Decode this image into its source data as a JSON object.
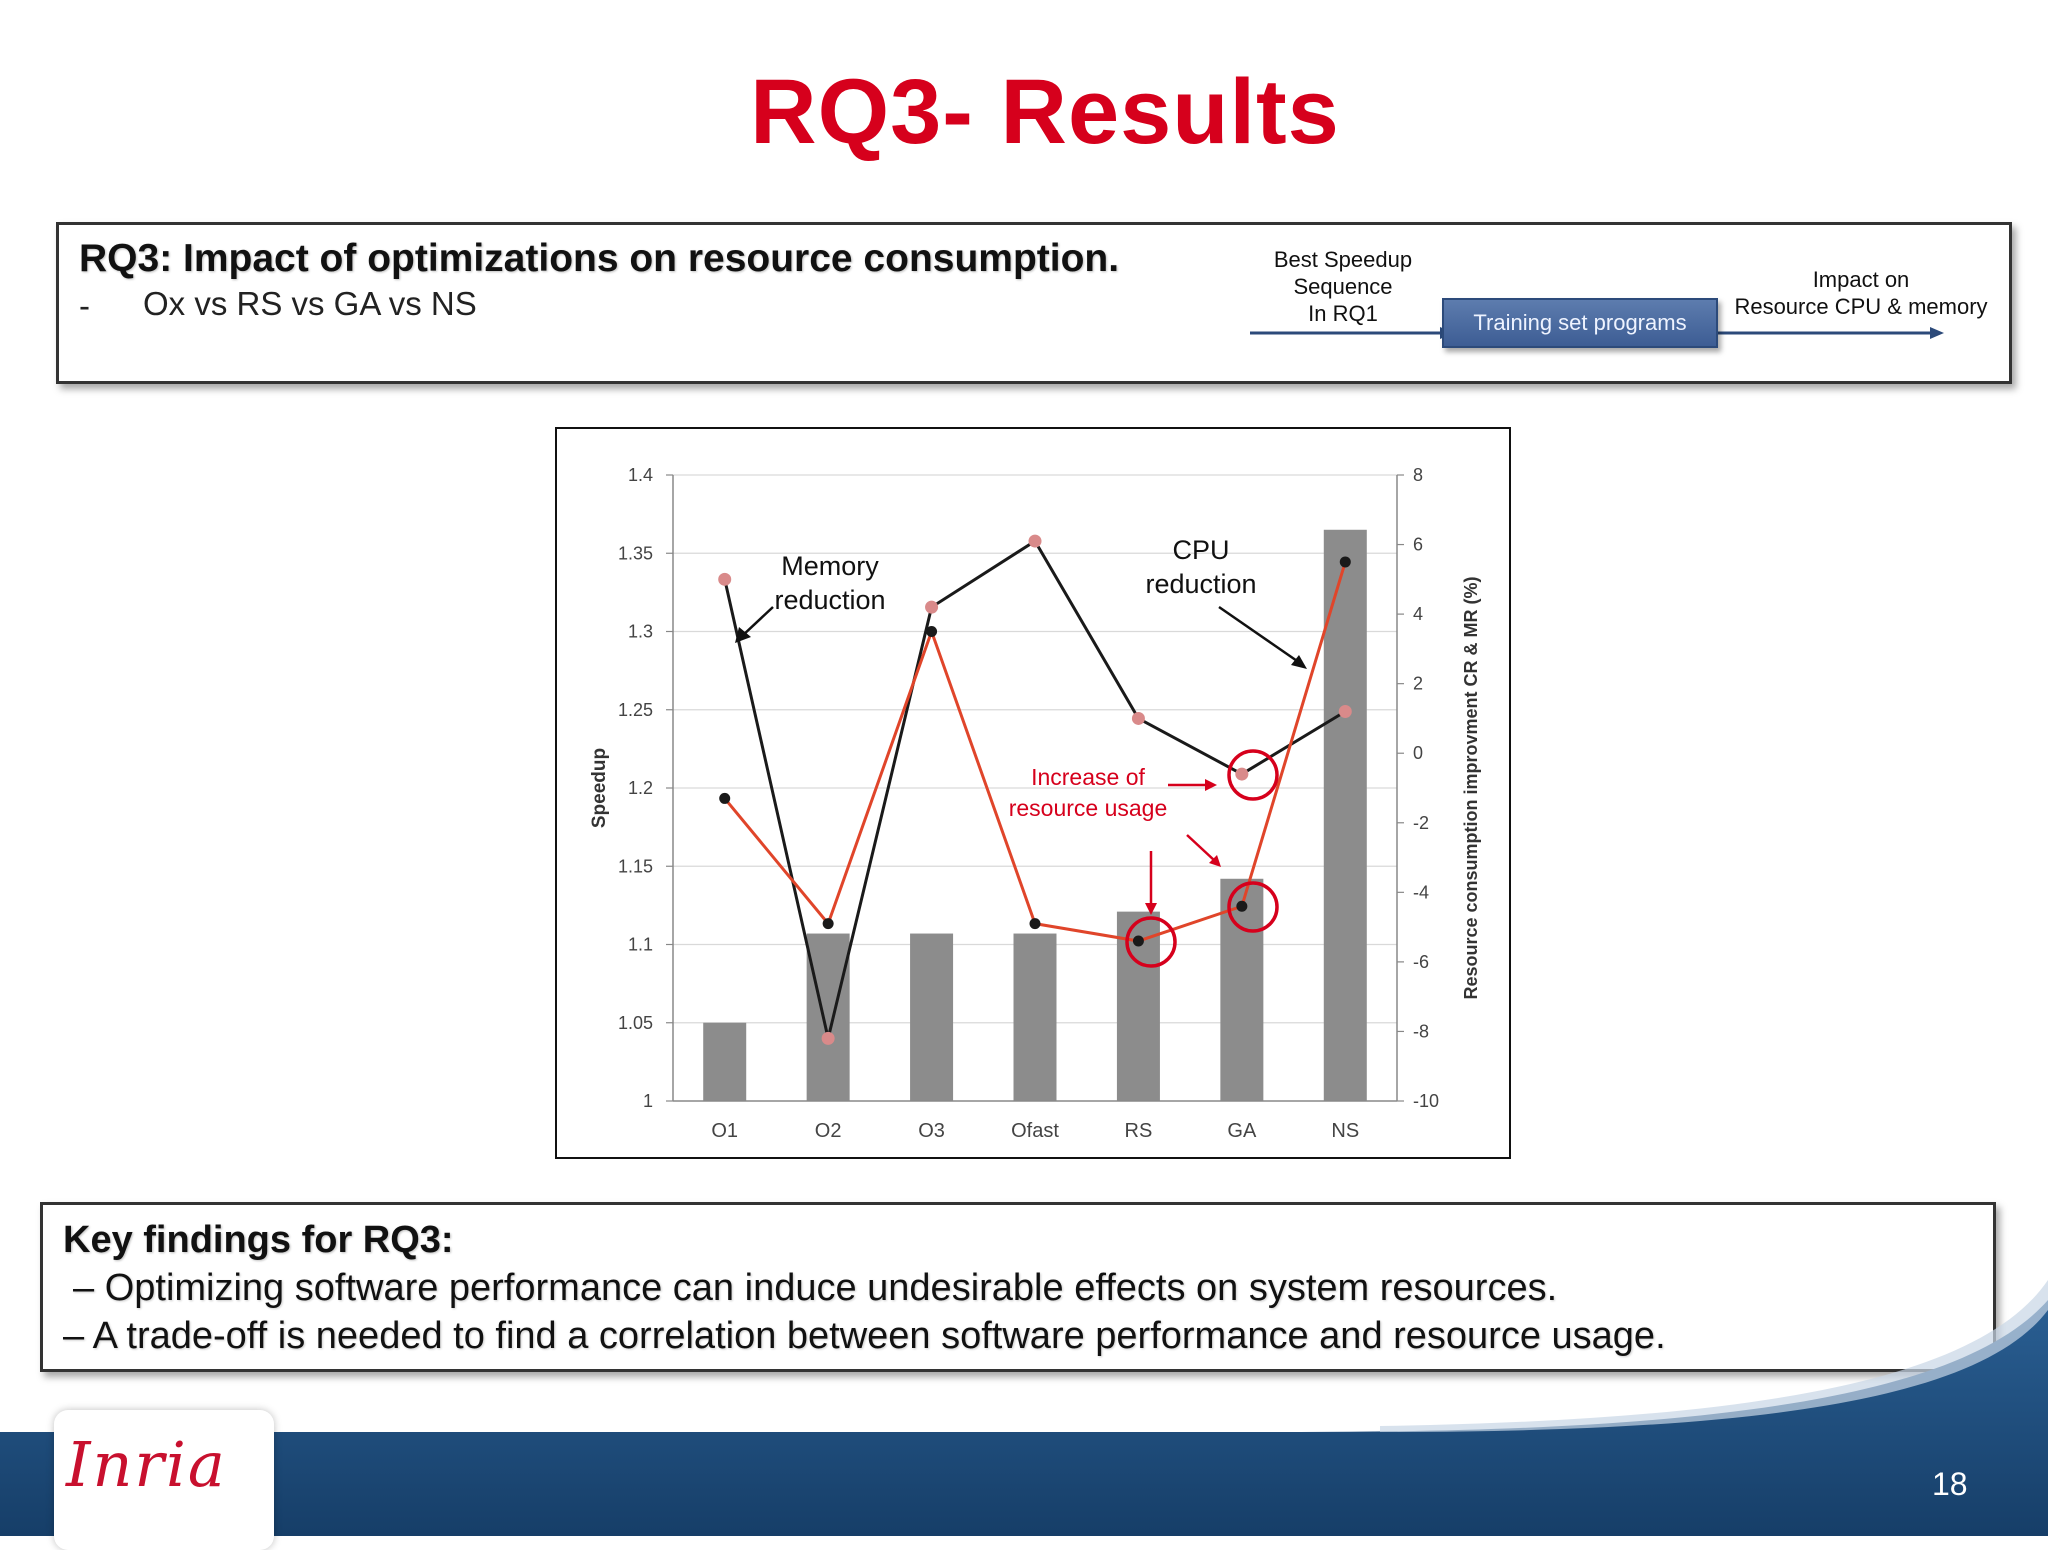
{
  "slide": {
    "title": "RQ3- Results",
    "page_number": "18",
    "logo_text": "Inria"
  },
  "rq_box": {
    "heading": "RQ3:  Impact of optimizations on resource consumption.",
    "bullet_dash": "-",
    "bullet": "Ox vs RS vs GA vs NS",
    "flow": {
      "left_lines": [
        "Best Speedup",
        "Sequence",
        "In RQ1"
      ],
      "box_label": "Training set programs",
      "right_lines": [
        "Impact on",
        "Resource CPU & memory"
      ]
    }
  },
  "key_findings": {
    "heading": "Key findings for RQ3:",
    "lines": [
      "– Optimizing software performance can induce undesirable effects on system resources.",
      "–  A trade-off is needed to find a correlation between software performance and resource usage."
    ]
  },
  "colors": {
    "title": "#d6001c",
    "bar": "#8c8c8c",
    "cpu_line": "#1a1a1a",
    "memory_line": "#e0452a",
    "memory_marker": "#d98a8a",
    "highlight": "#d6001c",
    "footer_blue": "#1d4d7e"
  },
  "chart_data": {
    "type": "bar",
    "categories": [
      "O1",
      "O2",
      "O3",
      "Ofast",
      "RS",
      "GA",
      "NS"
    ],
    "series": [
      {
        "values": [
          1.05,
          1.107,
          1.107,
          1.107,
          1.121,
          1.142,
          1.365
        ]
      }
    ],
    "line_series": [
      {
        "values": [
          5.0,
          -8.2,
          4.2,
          6.1,
          1.0,
          -0.6,
          1.2
        ]
      },
      {
        "values": [
          -1.3,
          -4.9,
          3.5,
          -4.9,
          -5.4,
          -4.4,
          5.5
        ]
      }
    ],
    "ylabel": "Speedup",
    "y2label": "Resource consumption improvment CR & MR (%)",
    "ylim": [
      1,
      1.4
    ],
    "y2lim": [
      -10,
      8
    ],
    "yticks": [
      "1",
      "1.05",
      "1.1",
      "1.15",
      "1.2",
      "1.25",
      "1.3",
      "1.35",
      "1.4"
    ],
    "y2ticks": [
      "-10",
      "-8",
      "-6",
      "-4",
      "-2",
      "0",
      "2",
      "4",
      "6",
      "8"
    ],
    "grid": true,
    "annotations": {
      "memory": [
        "Memory",
        "reduction"
      ],
      "cpu": [
        "CPU",
        "reduction"
      ],
      "increase": [
        "Increase of",
        "resource usage"
      ]
    }
  }
}
